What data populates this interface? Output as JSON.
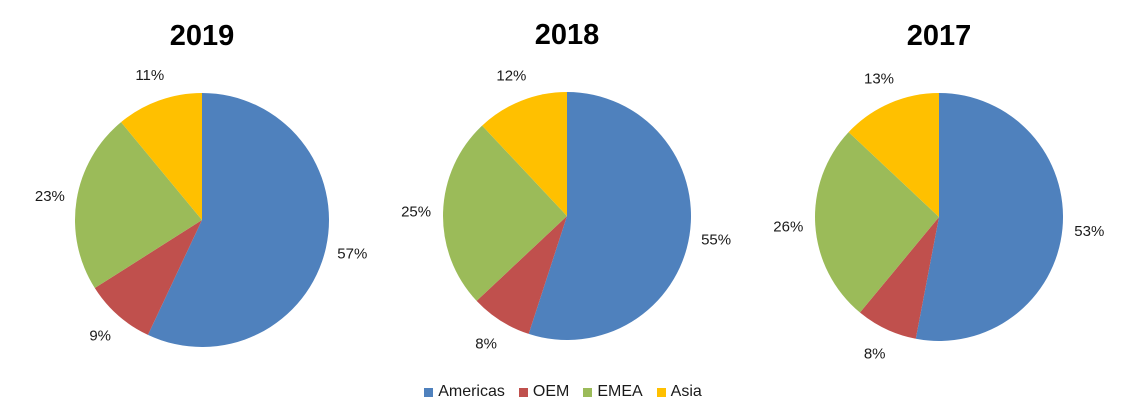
{
  "chart_data": [
    {
      "type": "pie",
      "title": "2019",
      "categories": [
        "Americas",
        "OEM",
        "EMEA",
        "Asia"
      ],
      "values": [
        57,
        9,
        23,
        11
      ],
      "labels": [
        "57%",
        "9%",
        "23%",
        "11%"
      ]
    },
    {
      "type": "pie",
      "title": "2018",
      "categories": [
        "Americas",
        "OEM",
        "EMEA",
        "Asia"
      ],
      "values": [
        55,
        8,
        25,
        12
      ],
      "labels": [
        "55%",
        "8%",
        "25%",
        "12%"
      ]
    },
    {
      "type": "pie",
      "title": "2017",
      "categories": [
        "Americas",
        "OEM",
        "EMEA",
        "Asia"
      ],
      "values": [
        53,
        8,
        26,
        13
      ],
      "labels": [
        "53%",
        "8%",
        "26%",
        "13%"
      ]
    }
  ],
  "legend": {
    "position": "bottom",
    "items": [
      {
        "name": "Americas",
        "color": "#4F81BD"
      },
      {
        "name": "OEM",
        "color": "#C0504D"
      },
      {
        "name": "EMEA",
        "color": "#9BBB59"
      },
      {
        "name": "Asia",
        "color": "#FFC000"
      }
    ]
  }
}
